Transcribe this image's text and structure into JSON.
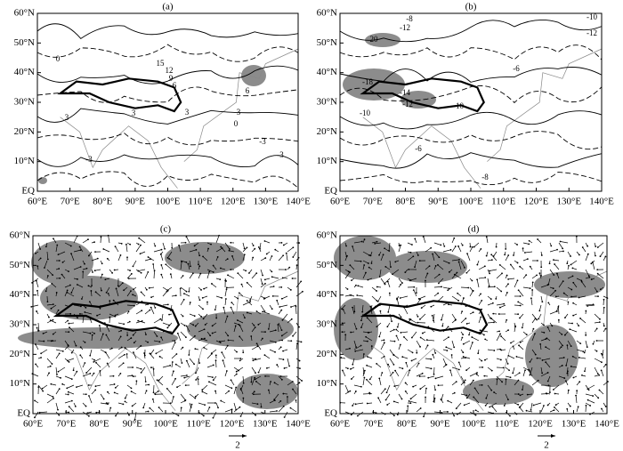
{
  "lat_labels": [
    "60°N",
    "50°N",
    "40°N",
    "30°N",
    "20°N",
    "10°N",
    "EQ"
  ],
  "lon_labels": [
    "60°E",
    "70°E",
    "80°E",
    "90°E",
    "100°E",
    "110°E",
    "120°E",
    "130°E",
    "140°E"
  ],
  "vector_scale_label": "2",
  "panels": [
    {
      "label": "(a)",
      "contour_labels": [
        "0",
        "15",
        "12",
        "9",
        "6",
        "3",
        "3",
        "3",
        "3",
        "6",
        "0",
        "-3",
        "-3",
        "-3"
      ]
    },
    {
      "label": "(b)",
      "contour_labels": [
        "-8",
        "-12",
        "20",
        "-10",
        "-12",
        "-6",
        "-18",
        "-14",
        "-12",
        "-10",
        "-10",
        "-6",
        "-8"
      ]
    },
    {
      "label": "(c)",
      "contour_labels": []
    },
    {
      "label": "(d)",
      "contour_labels": []
    }
  ]
}
